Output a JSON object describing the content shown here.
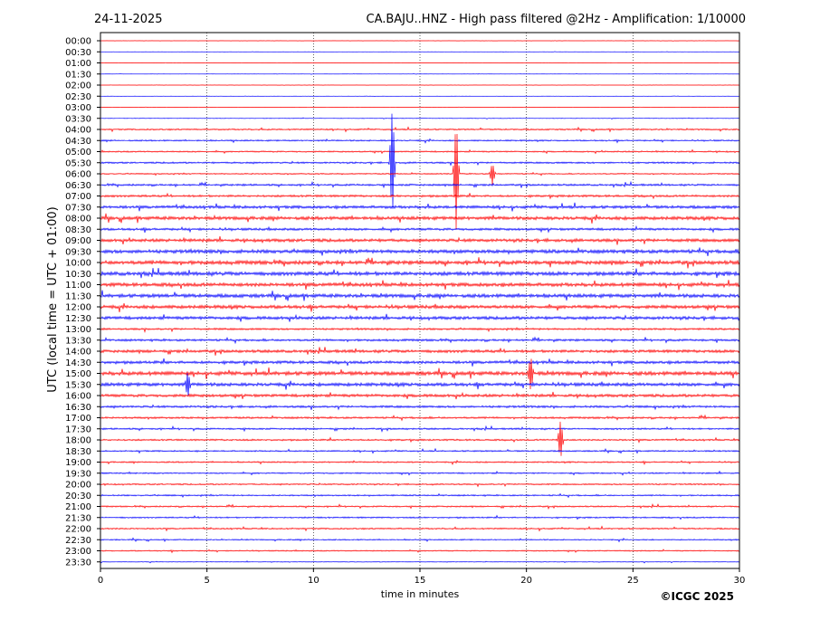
{
  "header": {
    "date": "24-11-2025",
    "title": "CA.BAJU..HNZ - High pass filtered @2Hz - Amplification: 1/10000"
  },
  "credit": "©ICGC 2025",
  "colors": {
    "odd_trace": "#ff0000",
    "even_trace": "#0000ff",
    "grid": "#000000"
  },
  "chart_data": {
    "type": "line",
    "title": "CA.BAJU..HNZ - High pass filtered @2Hz - Amplification: 1/10000",
    "xlabel": "time in minutes",
    "ylabel": "UTC (local time = UTC + 01:00)",
    "xlim": [
      0,
      30
    ],
    "x_ticks": [
      "0",
      "5",
      "10",
      "15",
      "20",
      "25",
      "30"
    ],
    "grid": {
      "vertical": true,
      "style": "dotted"
    },
    "trace_labels": [
      "00:00",
      "00:30",
      "01:00",
      "01:30",
      "02:00",
      "02:30",
      "03:00",
      "03:30",
      "04:00",
      "04:30",
      "05:00",
      "05:30",
      "06:00",
      "06:30",
      "07:00",
      "07:30",
      "08:00",
      "08:30",
      "09:00",
      "09:30",
      "10:00",
      "10:30",
      "11:00",
      "11:30",
      "12:00",
      "12:30",
      "13:00",
      "13:30",
      "14:00",
      "14:30",
      "15:00",
      "15:30",
      "16:00",
      "16:30",
      "17:00",
      "17:30",
      "18:00",
      "18:30",
      "19:00",
      "19:30",
      "20:00",
      "20:30",
      "21:00",
      "21:30",
      "22:00",
      "22:30",
      "23:00",
      "23:30"
    ],
    "trace_colors": [
      "red",
      "blue"
    ],
    "noise_level": [
      0.1,
      0.1,
      0.1,
      0.1,
      0.1,
      0.1,
      0.1,
      0.2,
      0.6,
      0.6,
      0.6,
      0.7,
      0.5,
      0.8,
      0.9,
      1.2,
      1.4,
      1.0,
      1.3,
      1.5,
      1.6,
      1.6,
      1.5,
      1.5,
      1.4,
      1.3,
      0.8,
      0.9,
      1.2,
      1.2,
      1.6,
      1.4,
      1.2,
      0.9,
      0.8,
      0.7,
      0.7,
      0.6,
      0.6,
      0.6,
      0.6,
      0.6,
      0.6,
      0.6,
      0.6,
      0.5,
      0.5,
      0.3
    ],
    "events": [
      {
        "trace": "05:30",
        "minute": 13.7,
        "amplitude": 5
      },
      {
        "trace": "06:00",
        "minute": 16.7,
        "amplitude": 5
      },
      {
        "trace": "06:00",
        "minute": 18.4,
        "amplitude": 1
      },
      {
        "trace": "15:00",
        "minute": 20.2,
        "amplitude": 1.6
      },
      {
        "trace": "18:00",
        "minute": 21.6,
        "amplitude": 1.8
      },
      {
        "trace": "15:30",
        "minute": 4.1,
        "amplitude": 1.2
      }
    ]
  }
}
